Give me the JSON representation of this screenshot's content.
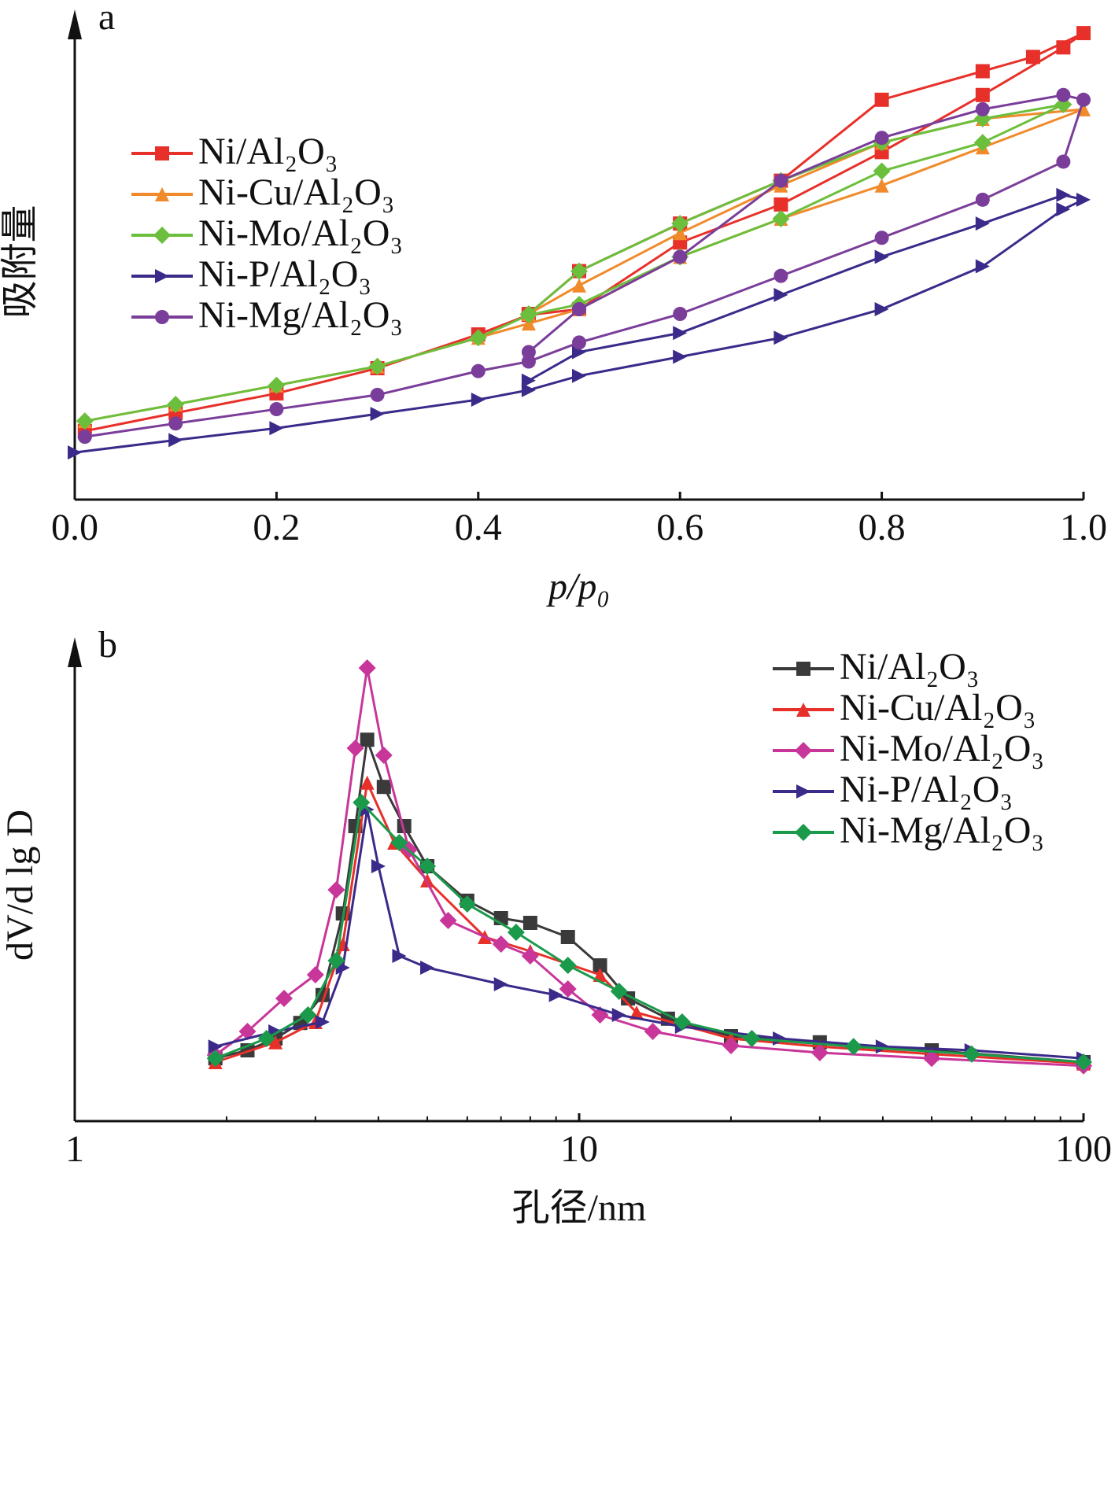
{
  "chart_data": [
    {
      "type": "line",
      "panel": "a",
      "x_label": "p/p₀",
      "y_label": "吸附量",
      "legend": "upper left",
      "xlim": [
        0,
        1
      ],
      "ylim": [
        0,
        100
      ],
      "xticks": [
        {
          "value": 0,
          "label": "0.0"
        },
        0.2,
        0.4,
        0.6,
        0.8,
        {
          "value": 1,
          "label": "1.0"
        }
      ],
      "series": [
        {
          "name": "Ni/Al₂O₃",
          "color": "#e8302a",
          "marker": "square",
          "x": [
            0.01,
            0.1,
            0.2,
            0.3,
            0.4,
            0.45,
            0.5,
            0.6,
            0.7,
            0.8,
            0.9,
            0.98,
            1.0,
            0.95,
            0.9,
            0.8,
            0.7,
            0.6,
            0.5,
            0.45
          ],
          "values": [
            14.4,
            18.2,
            22.3,
            27.6,
            34.7,
            38.8,
            40,
            54,
            62,
            73,
            85,
            95,
            98,
            93,
            90,
            84,
            67,
            58,
            48,
            39
          ]
        },
        {
          "name": "Ni-Cu/Al₂O₃",
          "color": "#f08a2a",
          "marker": "triangle",
          "x": [
            0.01,
            0.1,
            0.2,
            0.3,
            0.4,
            0.45,
            0.5,
            0.6,
            0.7,
            0.8,
            0.9,
            1.0,
            0.9,
            0.8,
            0.7,
            0.6,
            0.5,
            0.45
          ],
          "values": [
            16.5,
            20,
            24,
            28,
            34,
            37,
            40,
            51,
            59,
            66,
            74,
            82,
            80,
            75,
            66,
            56,
            45,
            39
          ]
        },
        {
          "name": "Ni-Mo/Al₂O₃",
          "color": "#6cbf3c",
          "marker": "diamond",
          "x": [
            0.01,
            0.1,
            0.2,
            0.3,
            0.4,
            0.45,
            0.5,
            0.6,
            0.7,
            0.8,
            0.9,
            0.98,
            0.9,
            0.8,
            0.7,
            0.6,
            0.5,
            0.45
          ],
          "values": [
            16.5,
            20,
            24,
            28,
            34,
            38.8,
            41,
            51,
            59,
            69,
            75,
            83,
            80,
            75,
            67,
            58,
            48,
            39
          ]
        },
        {
          "name": "Ni-P/Al₂O₃",
          "color": "#3b2a8a",
          "marker": "right",
          "x": [
            0.0,
            0.1,
            0.2,
            0.3,
            0.4,
            0.45,
            0.5,
            0.6,
            0.7,
            0.8,
            0.9,
            0.98,
            1.0,
            0.98,
            0.9,
            0.8,
            0.7,
            0.6,
            0.5,
            0.45
          ],
          "values": [
            9.9,
            12.5,
            15,
            18,
            21,
            23,
            26,
            30,
            34,
            40,
            49,
            61,
            63,
            64,
            58,
            51,
            43,
            35,
            31,
            25
          ]
        },
        {
          "name": "Ni-Mg/Al₂O₃",
          "color": "#7a3e9a",
          "marker": "circle",
          "x": [
            0.01,
            0.1,
            0.2,
            0.3,
            0.4,
            0.45,
            0.5,
            0.6,
            0.7,
            0.8,
            0.9,
            0.98,
            1.0,
            0.98,
            0.9,
            0.8,
            0.7,
            0.6,
            0.5,
            0.45
          ],
          "values": [
            13.2,
            16,
            19,
            22,
            27,
            29,
            33,
            39,
            47,
            55,
            63,
            71,
            84,
            85,
            82,
            76,
            67,
            51,
            40,
            31
          ]
        }
      ]
    },
    {
      "type": "line",
      "panel": "b",
      "x_label": "孔径/nm",
      "y_label": "dV/d lg D",
      "legend": "upper right",
      "xscale": "log",
      "xlim": [
        1,
        100
      ],
      "ylim": [
        0,
        100
      ],
      "xticks": [
        1,
        10,
        100
      ],
      "series": [
        {
          "name": "Ni/Al₂O₃",
          "color": "#3a3a3a",
          "marker": "square",
          "x": [
            1.9,
            2.2,
            2.5,
            2.8,
            3.1,
            3.4,
            3.6,
            3.8,
            4.1,
            4.5,
            5,
            6,
            7,
            8,
            9.5,
            11,
            12.5,
            15,
            20,
            30,
            50,
            100
          ],
          "values": [
            13.3,
            15,
            17.5,
            20.8,
            26.7,
            44,
            62.5,
            80.8,
            70.8,
            62.5,
            54,
            46.7,
            43,
            42,
            39,
            33,
            26,
            21.7,
            18,
            16.7,
            15,
            12.5
          ]
        },
        {
          "name": "Ni-Cu/Al₂O₃",
          "color": "#e8302a",
          "marker": "triangle",
          "x": [
            1.9,
            2.5,
            3,
            3.4,
            3.8,
            4.3,
            5,
            6.5,
            8,
            11,
            13,
            20,
            30,
            50,
            100
          ],
          "values": [
            12.5,
            16.7,
            21,
            37.5,
            71.7,
            59,
            51,
            39,
            36,
            31,
            23,
            17.5,
            15.8,
            14.2,
            12.2
          ]
        },
        {
          "name": "Ni-Mo/Al₂O₃",
          "color": "#c8369a",
          "marker": "diamond",
          "x": [
            1.9,
            2.2,
            2.6,
            3,
            3.3,
            3.6,
            3.8,
            4.1,
            4.6,
            5.5,
            7,
            8,
            9.5,
            11,
            14,
            20,
            30,
            50,
            100
          ],
          "values": [
            14,
            19,
            26,
            31,
            49,
            79,
            96,
            77.5,
            57.5,
            42.5,
            37.5,
            35,
            28,
            22.5,
            19,
            16,
            14.5,
            13.3,
            11.7
          ]
        },
        {
          "name": "Ni-P/Al₂O₃",
          "color": "#3b2a8a",
          "marker": "right",
          "x": [
            1.9,
            2.5,
            3.1,
            3.4,
            3.8,
            4,
            4.4,
            5,
            7,
            9,
            12,
            16,
            25,
            40,
            60,
            100
          ],
          "values": [
            15.8,
            19,
            21,
            32.5,
            66,
            54,
            35,
            32.5,
            29,
            26.7,
            22.5,
            20,
            17.5,
            15.8,
            15,
            13.3
          ]
        },
        {
          "name": "Ni-Mg/Al₂O₃",
          "color": "#1a9a4a",
          "marker": "diamond",
          "x": [
            1.9,
            2.4,
            2.9,
            3.3,
            3.7,
            4.4,
            5,
            6,
            7.5,
            9.5,
            12,
            16,
            22,
            35,
            60,
            100
          ],
          "values": [
            13.3,
            17.5,
            22.5,
            34,
            67.5,
            59,
            54,
            46,
            40,
            33,
            27.5,
            21,
            17.5,
            15.8,
            14.2,
            12.5
          ]
        }
      ]
    }
  ]
}
